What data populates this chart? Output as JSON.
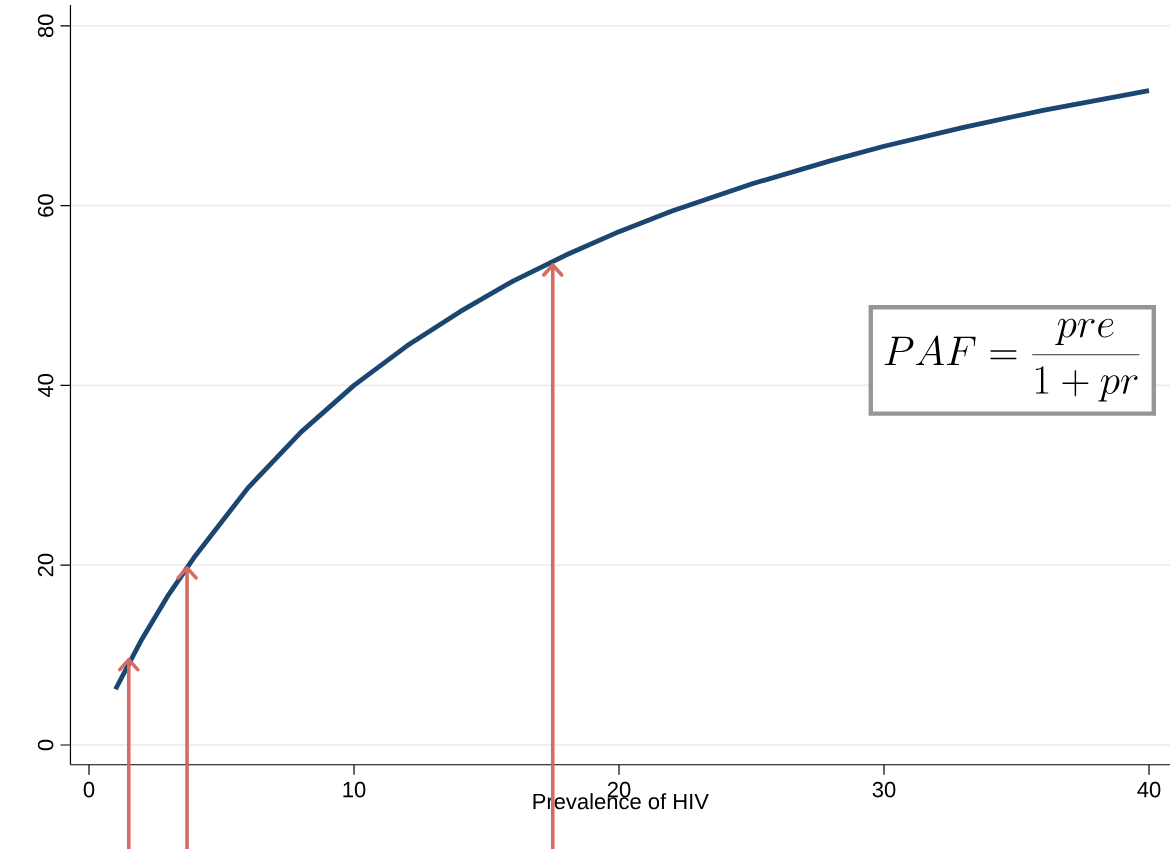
{
  "chart_data": {
    "type": "line",
    "xlabel": "Prevalence of HIV",
    "x": [
      1,
      2,
      3,
      4,
      6,
      8,
      10,
      12,
      14,
      16,
      18,
      20,
      22,
      25,
      28,
      30,
      33,
      36,
      40
    ],
    "series": [
      {
        "color": "#1a4670",
        "values": [
          6.2,
          11.8,
          16.7,
          21,
          28.6,
          34.8,
          40,
          44.4,
          48.2,
          51.6,
          54.5,
          57.1,
          59.4,
          62.4,
          65,
          66.6,
          68.7,
          70.6,
          72.8
        ]
      },
      {
        "color": "#d46c62",
        "x": [
          1.5,
          1.5
        ],
        "values": [
          -2.2,
          9.5
        ]
      },
      {
        "color": "#d46c62",
        "x": [
          3.7,
          3.7
        ],
        "values": [
          -2.2,
          19.7
        ]
      },
      {
        "color": "#d46c62",
        "x": [
          17.5,
          17.5
        ],
        "values": [
          -2.2,
          53.4
        ]
      }
    ],
    "xlim": [
      -0.7,
      40.8
    ],
    "ylim": [
      -2.2,
      82.3
    ],
    "xticks": [
      0,
      10,
      20,
      30,
      40
    ],
    "yticks": [
      0,
      20,
      40,
      60,
      80
    ],
    "grid": "y",
    "line_style": "solid",
    "marker": "none",
    "annotations": [
      "PAF = \\frac{pre}{1+pr}"
    ]
  }
}
